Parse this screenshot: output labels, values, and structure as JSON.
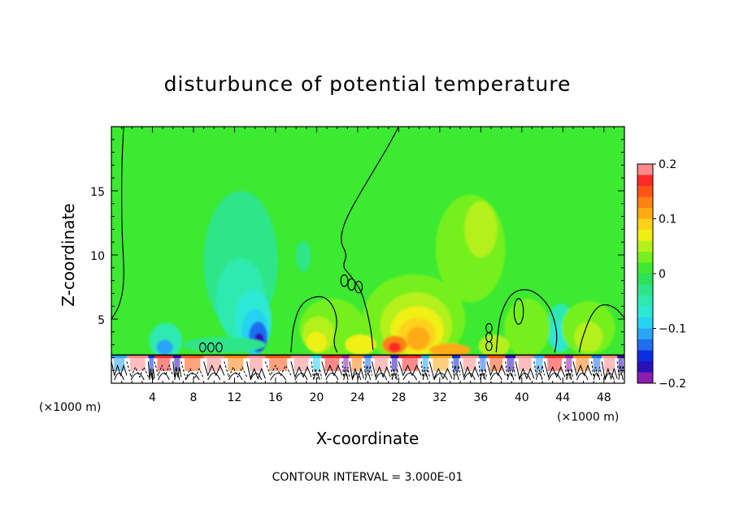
{
  "chart_data": {
    "type": "heatmap",
    "title": "disturbunce of potential temperature",
    "xlabel": "X-coordinate",
    "ylabel": "Z-coordinate",
    "x_unit_left": "(×1000 m)",
    "x_unit_right": "(×1000 m)",
    "xlim": [
      0,
      50
    ],
    "ylim": [
      0,
      20
    ],
    "x_ticks": [
      {
        "value": 4,
        "label": "4"
      },
      {
        "value": 8,
        "label": "8"
      },
      {
        "value": 12,
        "label": "12"
      },
      {
        "value": 16,
        "label": "16"
      },
      {
        "value": 20,
        "label": "20"
      },
      {
        "value": 24,
        "label": "24"
      },
      {
        "value": 28,
        "label": "28"
      },
      {
        "value": 32,
        "label": "32"
      },
      {
        "value": 36,
        "label": "36"
      },
      {
        "value": 40,
        "label": "40"
      },
      {
        "value": 44,
        "label": "44"
      },
      {
        "value": 48,
        "label": "48"
      }
    ],
    "y_ticks": [
      {
        "value": 5,
        "label": "5"
      },
      {
        "value": 10,
        "label": "10"
      },
      {
        "value": 15,
        "label": "15"
      }
    ],
    "colorbar": {
      "min": -0.2,
      "max": 0.2,
      "tick_labels": [
        {
          "value": 0.2,
          "label": "0.2"
        },
        {
          "value": 0.1,
          "label": "0.1"
        },
        {
          "value": 0,
          "label": "0"
        },
        {
          "value": -0.1,
          "label": "−0.1"
        },
        {
          "value": -0.2,
          "label": "−0.2"
        }
      ],
      "levels": [
        {
          "value": -0.19,
          "color": "#8a1cb0"
        },
        {
          "value": -0.17,
          "color": "#2a10b8"
        },
        {
          "value": -0.15,
          "color": "#0a2ee0"
        },
        {
          "value": -0.13,
          "color": "#1e6ef0"
        },
        {
          "value": -0.11,
          "color": "#2aa5f5"
        },
        {
          "value": -0.09,
          "color": "#28d2f2"
        },
        {
          "value": -0.07,
          "color": "#2ee8d6"
        },
        {
          "value": -0.05,
          "color": "#2eeab0"
        },
        {
          "value": -0.03,
          "color": "#2ee68a"
        },
        {
          "value": -0.01,
          "color": "#2ee05a"
        },
        {
          "value": 0.01,
          "color": "#3cea32"
        },
        {
          "value": 0.03,
          "color": "#74f01e"
        },
        {
          "value": 0.05,
          "color": "#b4f01a"
        },
        {
          "value": 0.07,
          "color": "#eef012"
        },
        {
          "value": 0.09,
          "color": "#ffd21a"
        },
        {
          "value": 0.11,
          "color": "#ffaa14"
        },
        {
          "value": 0.13,
          "color": "#ff8214"
        },
        {
          "value": 0.15,
          "color": "#ff5514"
        },
        {
          "value": 0.17,
          "color": "#ff2a28"
        },
        {
          "value": 0.19,
          "color": "#ff8a8a"
        }
      ],
      "background_value": 0.01
    },
    "anomalies": [
      {
        "x": 12.6,
        "z": 9.5,
        "rx": 3.6,
        "rz": 5.5,
        "value": -0.03
      },
      {
        "x": 12.6,
        "z": 6.5,
        "rx": 2.4,
        "rz": 3.2,
        "value": -0.05
      },
      {
        "x": 13.8,
        "z": 4.8,
        "rx": 1.8,
        "rz": 2.5,
        "value": -0.07
      },
      {
        "x": 14.0,
        "z": 4.0,
        "rx": 1.3,
        "rz": 1.8,
        "value": -0.09
      },
      {
        "x": 14.3,
        "z": 3.6,
        "rx": 0.9,
        "rz": 1.2,
        "value": -0.13
      },
      {
        "x": 14.4,
        "z": 3.2,
        "rx": 0.5,
        "rz": 0.7,
        "value": -0.17
      },
      {
        "x": 5.3,
        "z": 3.3,
        "rx": 1.6,
        "rz": 1.4,
        "value": -0.05
      },
      {
        "x": 5.2,
        "z": 2.8,
        "rx": 0.8,
        "rz": 0.6,
        "value": -0.11
      },
      {
        "x": 18.7,
        "z": 9.9,
        "rx": 0.7,
        "rz": 1.2,
        "value": -0.03
      },
      {
        "x": 43.8,
        "z": 4.3,
        "rx": 1.4,
        "rz": 1.9,
        "value": -0.05
      },
      {
        "x": 43.6,
        "z": 3.7,
        "rx": 0.8,
        "rz": 1.1,
        "value": -0.07
      },
      {
        "x": 11.0,
        "z": 3.0,
        "rx": 4.0,
        "rz": 0.6,
        "value": -0.03
      },
      {
        "x": 35.0,
        "z": 10.5,
        "rx": 3.4,
        "rz": 4.2,
        "value": 0.03
      },
      {
        "x": 36.0,
        "z": 12.0,
        "rx": 1.6,
        "rz": 2.2,
        "value": 0.05
      },
      {
        "x": 29.5,
        "z": 5.0,
        "rx": 5.0,
        "rz": 3.5,
        "value": 0.03
      },
      {
        "x": 29.7,
        "z": 4.5,
        "rx": 3.5,
        "rz": 2.6,
        "value": 0.05
      },
      {
        "x": 29.8,
        "z": 4.1,
        "rx": 2.6,
        "rz": 1.9,
        "value": 0.07
      },
      {
        "x": 29.8,
        "z": 3.8,
        "rx": 1.8,
        "rz": 1.3,
        "value": 0.09
      },
      {
        "x": 29.9,
        "z": 3.5,
        "rx": 1.1,
        "rz": 0.9,
        "value": 0.11
      },
      {
        "x": 27.6,
        "z": 3.0,
        "rx": 1.2,
        "rz": 0.7,
        "value": 0.13
      },
      {
        "x": 27.6,
        "z": 2.8,
        "rx": 0.6,
        "rz": 0.4,
        "value": 0.17
      },
      {
        "x": 21.5,
        "z": 4.3,
        "rx": 3.2,
        "rz": 2.3,
        "value": 0.03
      },
      {
        "x": 20.2,
        "z": 3.8,
        "rx": 1.6,
        "rz": 1.4,
        "value": 0.05
      },
      {
        "x": 20.0,
        "z": 3.2,
        "rx": 1.0,
        "rz": 0.8,
        "value": 0.07
      },
      {
        "x": 46.5,
        "z": 4.3,
        "rx": 2.6,
        "rz": 2.1,
        "value": 0.03
      },
      {
        "x": 46.5,
        "z": 3.6,
        "rx": 1.4,
        "rz": 1.2,
        "value": 0.05
      },
      {
        "x": 40.5,
        "z": 4.3,
        "rx": 2.2,
        "rz": 2.3,
        "value": 0.03
      },
      {
        "x": 24.3,
        "z": 3.0,
        "rx": 1.5,
        "rz": 0.8,
        "value": 0.07
      },
      {
        "x": 33.0,
        "z": 2.6,
        "rx": 2.0,
        "rz": 0.5,
        "value": 0.11
      },
      {
        "x": 37.3,
        "z": 2.9,
        "rx": 1.5,
        "rz": 0.9,
        "value": 0.05
      }
    ],
    "zero_contours": [
      {
        "points": [
          [
            1.2,
            20
          ],
          [
            1.0,
            17.0
          ],
          [
            1.0,
            12.0
          ],
          [
            1.3,
            8.0
          ],
          [
            0.8,
            6.0
          ],
          [
            0,
            5.0
          ]
        ]
      },
      {
        "points": [
          [
            28.0,
            20
          ],
          [
            27.0,
            18.5
          ],
          [
            25.5,
            16.5
          ],
          [
            23.5,
            13.8
          ],
          [
            22.6,
            12.3
          ],
          [
            22.3,
            11.0
          ],
          [
            23.0,
            10.0
          ],
          [
            22.5,
            9.1
          ],
          [
            23.3,
            8.4
          ],
          [
            24.3,
            7.3
          ],
          [
            24.8,
            6.0
          ],
          [
            25.3,
            4.2
          ],
          [
            25.5,
            2.6
          ]
        ]
      },
      {
        "points": [
          [
            17.5,
            2.4
          ],
          [
            17.7,
            4.5
          ],
          [
            18.5,
            6.3
          ],
          [
            20.3,
            6.9
          ],
          [
            21.5,
            6.3
          ],
          [
            22.1,
            4.8
          ],
          [
            21.6,
            3.2
          ],
          [
            22.0,
            2.4
          ]
        ]
      },
      {
        "points": [
          [
            37.5,
            2.4
          ],
          [
            37.7,
            4.2
          ],
          [
            38.0,
            5.6
          ],
          [
            39.0,
            7.1
          ],
          [
            40.6,
            7.4
          ],
          [
            42.0,
            6.7
          ],
          [
            43.0,
            5.5
          ],
          [
            43.5,
            3.7
          ],
          [
            43.2,
            2.4
          ]
        ]
      },
      {
        "points": [
          [
            50,
            5.1
          ],
          [
            49.0,
            6.0
          ],
          [
            47.7,
            6.2
          ],
          [
            46.7,
            5.3
          ],
          [
            45.8,
            3.3
          ],
          [
            45.6,
            2.4
          ]
        ]
      }
    ],
    "closed_contours": [
      {
        "x": 39.7,
        "z": 5.6,
        "rx": 0.45,
        "rz": 1.0
      },
      {
        "x": 22.7,
        "z": 8.0,
        "rx": 0.35,
        "rz": 0.45
      },
      {
        "x": 23.4,
        "z": 7.7,
        "rx": 0.35,
        "rz": 0.45
      },
      {
        "x": 24.1,
        "z": 7.5,
        "rx": 0.35,
        "rz": 0.45
      },
      {
        "x": 8.9,
        "z": 2.8,
        "rx": 0.3,
        "rz": 0.35
      },
      {
        "x": 9.7,
        "z": 2.8,
        "rx": 0.3,
        "rz": 0.35
      },
      {
        "x": 10.5,
        "z": 2.8,
        "rx": 0.3,
        "rz": 0.35
      },
      {
        "x": 36.8,
        "z": 4.3,
        "rx": 0.3,
        "rz": 0.35
      },
      {
        "x": 36.8,
        "z": 3.6,
        "rx": 0.3,
        "rz": 0.35
      },
      {
        "x": 36.8,
        "z": 2.9,
        "rx": 0.3,
        "rz": 0.35
      }
    ],
    "surface_layer": {
      "z_top": 2.2,
      "segments": [
        {
          "x0": 0.0,
          "x1": 1.5,
          "value": -0.11
        },
        {
          "x0": 1.5,
          "x1": 3.6,
          "value": 0.19
        },
        {
          "x0": 3.6,
          "x1": 4.2,
          "value": -0.15
        },
        {
          "x0": 4.2,
          "x1": 6.0,
          "value": 0.17
        },
        {
          "x0": 6.0,
          "x1": 6.8,
          "value": -0.17
        },
        {
          "x0": 6.8,
          "x1": 9.0,
          "value": 0.15
        },
        {
          "x0": 9.0,
          "x1": 11.0,
          "value": 0.19
        },
        {
          "x0": 11.0,
          "x1": 13.2,
          "value": 0.13
        },
        {
          "x0": 13.2,
          "x1": 15.0,
          "value": 0.19
        },
        {
          "x0": 15.0,
          "x1": 17.5,
          "value": 0.15
        },
        {
          "x0": 17.5,
          "x1": 19.5,
          "value": 0.19
        },
        {
          "x0": 19.5,
          "x1": 20.5,
          "value": -0.09
        },
        {
          "x0": 20.5,
          "x1": 22.5,
          "value": 0.17
        },
        {
          "x0": 22.5,
          "x1": 23.2,
          "value": -0.19
        },
        {
          "x0": 23.2,
          "x1": 24.6,
          "value": 0.13
        },
        {
          "x0": 24.6,
          "x1": 25.4,
          "value": -0.13
        },
        {
          "x0": 25.4,
          "x1": 27.2,
          "value": 0.19
        },
        {
          "x0": 27.2,
          "x1": 28.0,
          "value": -0.17
        },
        {
          "x0": 28.0,
          "x1": 30.2,
          "value": 0.17
        },
        {
          "x0": 30.2,
          "x1": 31.0,
          "value": -0.11
        },
        {
          "x0": 31.0,
          "x1": 33.2,
          "value": 0.11
        },
        {
          "x0": 33.2,
          "x1": 34.0,
          "value": -0.15
        },
        {
          "x0": 34.0,
          "x1": 35.8,
          "value": 0.19
        },
        {
          "x0": 35.8,
          "x1": 36.6,
          "value": -0.13
        },
        {
          "x0": 36.6,
          "x1": 38.4,
          "value": 0.15
        },
        {
          "x0": 38.4,
          "x1": 39.4,
          "value": -0.17
        },
        {
          "x0": 39.4,
          "x1": 41.2,
          "value": 0.19
        },
        {
          "x0": 41.2,
          "x1": 42.2,
          "value": -0.11
        },
        {
          "x0": 42.2,
          "x1": 44.2,
          "value": 0.17
        },
        {
          "x0": 44.2,
          "x1": 45.0,
          "value": -0.19
        },
        {
          "x0": 45.0,
          "x1": 46.8,
          "value": 0.13
        },
        {
          "x0": 46.8,
          "x1": 47.8,
          "value": -0.13
        },
        {
          "x0": 47.8,
          "x1": 49.3,
          "value": 0.19
        },
        {
          "x0": 49.3,
          "x1": 50.0,
          "value": -0.17
        }
      ]
    },
    "clipped_region_color": "#ffffff"
  },
  "footer": {
    "contour_interval": "CONTOUR INTERVAL = 3.000E-01"
  }
}
